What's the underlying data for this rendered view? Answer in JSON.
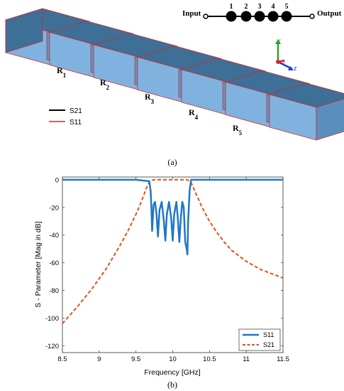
{
  "panel_a": {
    "caption": "(a)",
    "schematic": {
      "input_label": "Input",
      "output_label": "Output",
      "resonator_numbers": [
        "1",
        "2",
        "3",
        "4",
        "5"
      ]
    },
    "resonator_labels": [
      {
        "main": "R",
        "sub": "1"
      },
      {
        "main": "R",
        "sub": "2"
      },
      {
        "main": "R",
        "sub": "3"
      },
      {
        "main": "R",
        "sub": "4"
      },
      {
        "main": "R",
        "sub": "5"
      }
    ],
    "legend": [
      {
        "name": "S21",
        "color": "#000000"
      },
      {
        "name": "S11",
        "color": "#e0202a"
      }
    ],
    "axes_triad": {
      "y": "y",
      "x": "x",
      "z": "z"
    },
    "colors": {
      "face_light": "#7fb2df",
      "face_dark": "#3e6f96",
      "edge": "#d62728"
    }
  },
  "panel_b": {
    "caption": "(b)"
  },
  "chart_data": {
    "type": "line",
    "title": "",
    "xlabel": "Frequency [GHz]",
    "ylabel": "S - Parameter [Mag in dB]",
    "xlim": [
      8.5,
      11.5
    ],
    "ylim": [
      -125,
      2
    ],
    "xticks": [
      8.5,
      9,
      9.5,
      10,
      10.5,
      11,
      11.5
    ],
    "xtick_labels": [
      "8.5",
      "9",
      "9.5",
      "10",
      "10.5",
      "11",
      "11.5"
    ],
    "yticks": [
      0,
      -20,
      -40,
      -60,
      -80,
      -100,
      -120
    ],
    "ytick_labels": [
      "0",
      "-20",
      "-40",
      "-60",
      "-80",
      "-100",
      "-120"
    ],
    "grid": false,
    "legend_position": "bottom-right",
    "series": [
      {
        "name": "S11",
        "color": "#1f77c4",
        "style": "solid",
        "x": [
          8.5,
          9.0,
          9.5,
          9.68,
          9.7,
          9.71,
          9.72,
          9.74,
          9.76,
          9.78,
          9.8,
          9.82,
          9.85,
          9.88,
          9.9,
          9.92,
          9.95,
          9.98,
          10.0,
          10.02,
          10.05,
          10.07,
          10.09,
          10.11,
          10.13,
          10.15,
          10.17,
          10.19,
          10.2,
          10.21,
          10.23,
          10.25,
          10.5,
          11.0,
          11.5
        ],
        "y": [
          0,
          0,
          0,
          -1,
          -8,
          -20,
          -37,
          -18,
          -16,
          -25,
          -41,
          -22,
          -16,
          -30,
          -44,
          -25,
          -16,
          -28,
          -44,
          -25,
          -16,
          -28,
          -45,
          -28,
          -16,
          -20,
          -45,
          -50,
          -54,
          -30,
          -8,
          0,
          0,
          0,
          0
        ]
      },
      {
        "name": "S21",
        "color": "#e0521b",
        "style": "dashed",
        "x": [
          8.5,
          8.7,
          8.9,
          9.1,
          9.2,
          9.3,
          9.4,
          9.5,
          9.55,
          9.6,
          9.65,
          9.68,
          9.7,
          9.75,
          10.0,
          10.2,
          10.25,
          10.3,
          10.35,
          10.4,
          10.5,
          10.6,
          10.7,
          10.8,
          11.0,
          11.2,
          11.5
        ],
        "y": [
          -104,
          -92,
          -79,
          -64,
          -55,
          -46,
          -36,
          -25,
          -19,
          -12,
          -5,
          -2,
          -0.5,
          0,
          0,
          0,
          -2,
          -8,
          -14,
          -20,
          -30,
          -38,
          -45,
          -51,
          -59,
          -65,
          -71
        ]
      }
    ]
  }
}
